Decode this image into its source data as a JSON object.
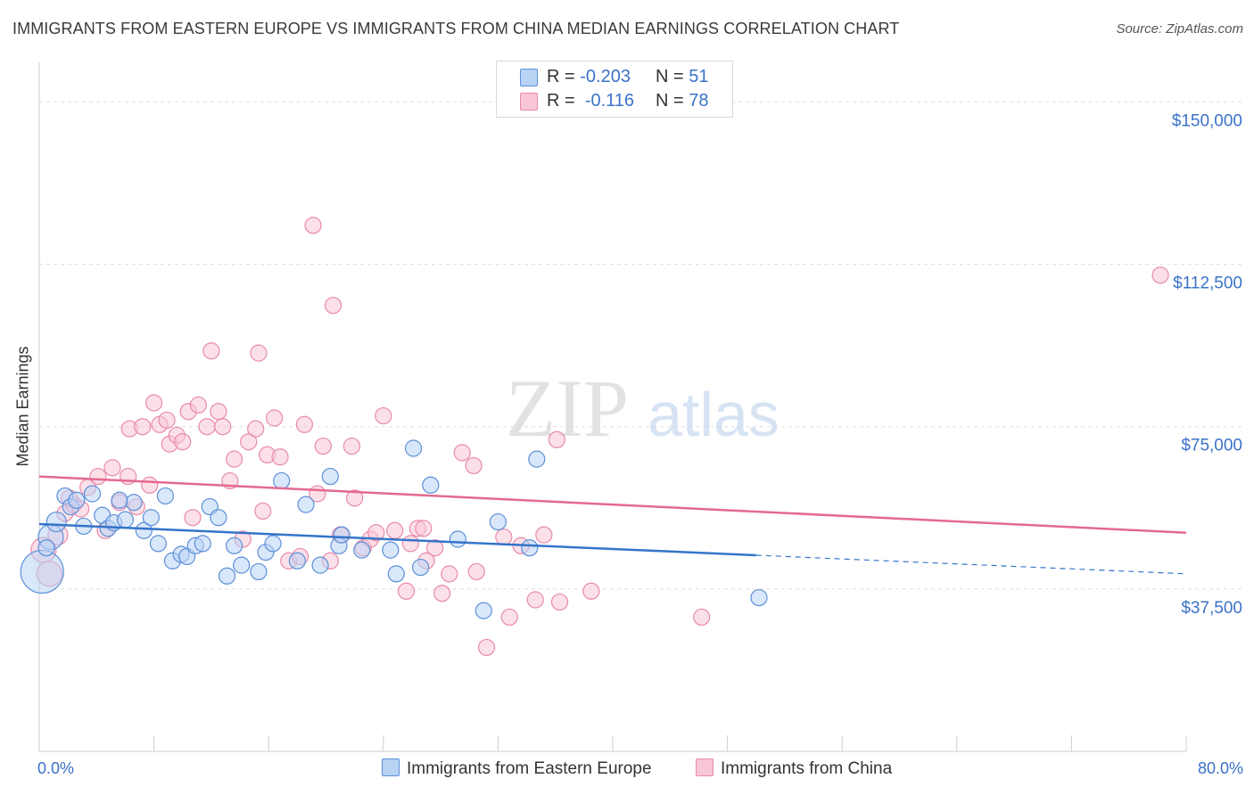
{
  "title": "IMMIGRANTS FROM EASTERN EUROPE VS IMMIGRANTS FROM CHINA MEDIAN EARNINGS CORRELATION CHART",
  "source": "Source: ZipAtlas.com",
  "watermark": {
    "zip": "ZIP",
    "atlas": "atlas"
  },
  "legend_top": {
    "rows": [
      {
        "r_label": "R =",
        "r_value": "-0.203",
        "n_label": "N =",
        "n_value": "51"
      },
      {
        "r_label": "R =",
        "r_value": "-0.116",
        "n_label": "N =",
        "n_value": "78"
      }
    ]
  },
  "legend_bottom": {
    "items": [
      {
        "label": "Immigrants from Eastern Europe"
      },
      {
        "label": "Immigrants from China"
      }
    ]
  },
  "axis": {
    "x_min_label": "0.0%",
    "x_max_label": "80.0%",
    "y_title": "Median Earnings",
    "y_ticks": [
      "$150,000",
      "$112,500",
      "$75,000",
      "$37,500"
    ]
  },
  "colors": {
    "eastern_europe_fill": "#b9d3f5",
    "eastern_europe_stroke": "#5b8fd8",
    "eastern_europe_line": "#3474c9",
    "china_fill": "#f9c6d6",
    "china_stroke": "#e88aa8",
    "china_line": "#e4698f",
    "tick_label": "#3a72c8",
    "grid": "#dddddd"
  },
  "chart_data": {
    "type": "scatter",
    "x_unit": "percent",
    "xlim": [
      0,
      80
    ],
    "ylim": [
      0,
      157500
    ],
    "grid": true,
    "grid_y_values": [
      150000,
      112500,
      75000,
      37500
    ],
    "legend_position": "top-center",
    "series": [
      {
        "name": "Immigrants from Eastern Europe",
        "r": -0.203,
        "n": 51,
        "trend": {
          "x0": 0,
          "y0": 52500,
          "x1": 50,
          "y1": 45300,
          "dashed_to_x": 80,
          "dashed_y1": 41000
        },
        "points": [
          {
            "x": 0.2,
            "y": 41500,
            "s": 24
          },
          {
            "x": 0.8,
            "y": 49500,
            "s": 14
          },
          {
            "x": 1.2,
            "y": 53000,
            "s": 11
          },
          {
            "x": 1.8,
            "y": 59000,
            "s": 9
          },
          {
            "x": 2.2,
            "y": 56500,
            "s": 9
          },
          {
            "x": 3.1,
            "y": 52000,
            "s": 9
          },
          {
            "x": 3.7,
            "y": 59500,
            "s": 9
          },
          {
            "x": 4.4,
            "y": 54500,
            "s": 9
          },
          {
            "x": 4.8,
            "y": 51500,
            "s": 9
          },
          {
            "x": 5.2,
            "y": 52800,
            "s": 9
          },
          {
            "x": 6.0,
            "y": 53500,
            "s": 9
          },
          {
            "x": 6.6,
            "y": 57500,
            "s": 9
          },
          {
            "x": 7.3,
            "y": 51000,
            "s": 9
          },
          {
            "x": 7.8,
            "y": 54000,
            "s": 9
          },
          {
            "x": 8.3,
            "y": 48000,
            "s": 9
          },
          {
            "x": 8.8,
            "y": 59000,
            "s": 9
          },
          {
            "x": 9.3,
            "y": 44000,
            "s": 9
          },
          {
            "x": 9.9,
            "y": 45500,
            "s": 9
          },
          {
            "x": 10.3,
            "y": 45000,
            "s": 9
          },
          {
            "x": 10.9,
            "y": 47500,
            "s": 9
          },
          {
            "x": 11.4,
            "y": 48000,
            "s": 9
          },
          {
            "x": 11.9,
            "y": 56500,
            "s": 9
          },
          {
            "x": 12.5,
            "y": 54000,
            "s": 9
          },
          {
            "x": 13.1,
            "y": 40500,
            "s": 9
          },
          {
            "x": 13.6,
            "y": 47500,
            "s": 9
          },
          {
            "x": 14.1,
            "y": 43000,
            "s": 9
          },
          {
            "x": 15.3,
            "y": 41500,
            "s": 9
          },
          {
            "x": 15.8,
            "y": 46000,
            "s": 9
          },
          {
            "x": 16.3,
            "y": 48000,
            "s": 9
          },
          {
            "x": 16.9,
            "y": 62500,
            "s": 9
          },
          {
            "x": 18.0,
            "y": 44000,
            "s": 9
          },
          {
            "x": 18.6,
            "y": 57000,
            "s": 9
          },
          {
            "x": 19.6,
            "y": 43000,
            "s": 9
          },
          {
            "x": 20.3,
            "y": 63500,
            "s": 9
          },
          {
            "x": 20.9,
            "y": 47500,
            "s": 9
          },
          {
            "x": 21.1,
            "y": 50000,
            "s": 9
          },
          {
            "x": 22.5,
            "y": 46500,
            "s": 9
          },
          {
            "x": 24.5,
            "y": 46500,
            "s": 9
          },
          {
            "x": 24.9,
            "y": 41000,
            "s": 9
          },
          {
            "x": 26.1,
            "y": 70000,
            "s": 9
          },
          {
            "x": 26.6,
            "y": 42500,
            "s": 9
          },
          {
            "x": 27.3,
            "y": 61500,
            "s": 9
          },
          {
            "x": 29.2,
            "y": 49000,
            "s": 9
          },
          {
            "x": 31.0,
            "y": 32500,
            "s": 9
          },
          {
            "x": 32.0,
            "y": 53000,
            "s": 9
          },
          {
            "x": 34.2,
            "y": 47000,
            "s": 9
          },
          {
            "x": 34.7,
            "y": 67500,
            "s": 9
          },
          {
            "x": 50.2,
            "y": 35500,
            "s": 9
          },
          {
            "x": 0.5,
            "y": 47000,
            "s": 9
          },
          {
            "x": 2.6,
            "y": 58000,
            "s": 9
          },
          {
            "x": 5.6,
            "y": 58000,
            "s": 9
          }
        ]
      },
      {
        "name": "Immigrants from China",
        "r": -0.116,
        "n": 78,
        "trend": {
          "x0": 0,
          "y0": 63500,
          "x1": 80,
          "y1": 50500
        },
        "points": [
          {
            "x": 0.3,
            "y": 46500,
            "s": 14
          },
          {
            "x": 0.7,
            "y": 41000,
            "s": 14
          },
          {
            "x": 1.3,
            "y": 50000,
            "s": 11
          },
          {
            "x": 1.8,
            "y": 55000,
            "s": 9
          },
          {
            "x": 2.4,
            "y": 57000,
            "s": 9
          },
          {
            "x": 2.9,
            "y": 56000,
            "s": 9
          },
          {
            "x": 3.4,
            "y": 61000,
            "s": 9
          },
          {
            "x": 4.1,
            "y": 63500,
            "s": 9
          },
          {
            "x": 4.6,
            "y": 51000,
            "s": 9
          },
          {
            "x": 5.1,
            "y": 65500,
            "s": 9
          },
          {
            "x": 5.6,
            "y": 57500,
            "s": 9
          },
          {
            "x": 6.2,
            "y": 63500,
            "s": 9
          },
          {
            "x": 6.3,
            "y": 74500,
            "s": 9
          },
          {
            "x": 6.8,
            "y": 56500,
            "s": 9
          },
          {
            "x": 7.2,
            "y": 75000,
            "s": 9
          },
          {
            "x": 7.7,
            "y": 61500,
            "s": 9
          },
          {
            "x": 8.0,
            "y": 80500,
            "s": 9
          },
          {
            "x": 8.4,
            "y": 75500,
            "s": 9
          },
          {
            "x": 8.9,
            "y": 76500,
            "s": 9
          },
          {
            "x": 9.1,
            "y": 71000,
            "s": 9
          },
          {
            "x": 9.6,
            "y": 73000,
            "s": 9
          },
          {
            "x": 10.0,
            "y": 71500,
            "s": 9
          },
          {
            "x": 10.4,
            "y": 78500,
            "s": 9
          },
          {
            "x": 10.7,
            "y": 54000,
            "s": 9
          },
          {
            "x": 11.1,
            "y": 80000,
            "s": 9
          },
          {
            "x": 11.7,
            "y": 75000,
            "s": 9
          },
          {
            "x": 12.0,
            "y": 92500,
            "s": 9
          },
          {
            "x": 12.5,
            "y": 78500,
            "s": 9
          },
          {
            "x": 12.8,
            "y": 75000,
            "s": 9
          },
          {
            "x": 13.3,
            "y": 62500,
            "s": 9
          },
          {
            "x": 13.6,
            "y": 67500,
            "s": 9
          },
          {
            "x": 14.2,
            "y": 49000,
            "s": 9
          },
          {
            "x": 14.6,
            "y": 71500,
            "s": 9
          },
          {
            "x": 15.1,
            "y": 74500,
            "s": 9
          },
          {
            "x": 15.3,
            "y": 92000,
            "s": 9
          },
          {
            "x": 15.6,
            "y": 55500,
            "s": 9
          },
          {
            "x": 15.9,
            "y": 68500,
            "s": 9
          },
          {
            "x": 16.4,
            "y": 77000,
            "s": 9
          },
          {
            "x": 16.8,
            "y": 68000,
            "s": 9
          },
          {
            "x": 17.4,
            "y": 44000,
            "s": 9
          },
          {
            "x": 18.2,
            "y": 45000,
            "s": 9
          },
          {
            "x": 18.5,
            "y": 75500,
            "s": 9
          },
          {
            "x": 19.1,
            "y": 121500,
            "s": 9
          },
          {
            "x": 19.4,
            "y": 59500,
            "s": 9
          },
          {
            "x": 19.8,
            "y": 70500,
            "s": 9
          },
          {
            "x": 20.3,
            "y": 44000,
            "s": 9
          },
          {
            "x": 20.5,
            "y": 103000,
            "s": 9
          },
          {
            "x": 21.0,
            "y": 50000,
            "s": 9
          },
          {
            "x": 21.8,
            "y": 70500,
            "s": 9
          },
          {
            "x": 22.0,
            "y": 58500,
            "s": 9
          },
          {
            "x": 22.6,
            "y": 47000,
            "s": 9
          },
          {
            "x": 23.1,
            "y": 49000,
            "s": 9
          },
          {
            "x": 23.5,
            "y": 50500,
            "s": 9
          },
          {
            "x": 24.0,
            "y": 77500,
            "s": 9
          },
          {
            "x": 24.8,
            "y": 51000,
            "s": 9
          },
          {
            "x": 25.6,
            "y": 37000,
            "s": 9
          },
          {
            "x": 25.9,
            "y": 48000,
            "s": 9
          },
          {
            "x": 26.4,
            "y": 51500,
            "s": 9
          },
          {
            "x": 26.8,
            "y": 51500,
            "s": 9
          },
          {
            "x": 27.0,
            "y": 44000,
            "s": 9
          },
          {
            "x": 27.6,
            "y": 47000,
            "s": 9
          },
          {
            "x": 28.1,
            "y": 36500,
            "s": 9
          },
          {
            "x": 28.6,
            "y": 41000,
            "s": 9
          },
          {
            "x": 29.5,
            "y": 69000,
            "s": 9
          },
          {
            "x": 30.3,
            "y": 66000,
            "s": 9
          },
          {
            "x": 30.5,
            "y": 41500,
            "s": 9
          },
          {
            "x": 31.2,
            "y": 24000,
            "s": 9
          },
          {
            "x": 32.4,
            "y": 49500,
            "s": 9
          },
          {
            "x": 32.8,
            "y": 31000,
            "s": 9
          },
          {
            "x": 33.6,
            "y": 47500,
            "s": 9
          },
          {
            "x": 34.6,
            "y": 35000,
            "s": 9
          },
          {
            "x": 35.2,
            "y": 50000,
            "s": 9
          },
          {
            "x": 36.1,
            "y": 72000,
            "s": 9
          },
          {
            "x": 36.3,
            "y": 34500,
            "s": 9
          },
          {
            "x": 38.5,
            "y": 37000,
            "s": 9
          },
          {
            "x": 46.2,
            "y": 31000,
            "s": 9
          },
          {
            "x": 78.2,
            "y": 110000,
            "s": 9
          },
          {
            "x": 2.1,
            "y": 58500,
            "s": 9
          }
        ]
      }
    ]
  }
}
